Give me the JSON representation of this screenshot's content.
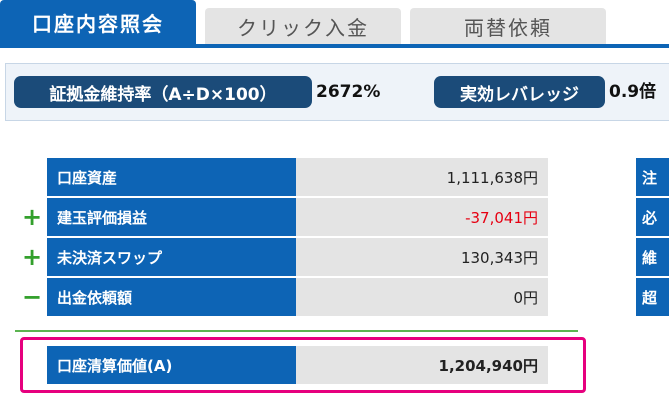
{
  "tabs": [
    {
      "label": "口座内容照会",
      "active": true
    },
    {
      "label": "クリック入金",
      "active": false
    },
    {
      "label": "両替依頼",
      "active": false
    }
  ],
  "metrics": {
    "margin_ratio_label": "証拠金維持率（A÷D×100）",
    "margin_ratio_value": "2672%",
    "leverage_label": "実効レバレッジ",
    "leverage_value": "0.9倍"
  },
  "account_rows": [
    {
      "sign": "",
      "label": "口座資産",
      "value": "1,111,638円"
    },
    {
      "sign": "+",
      "label": "建玉評価損益",
      "value": "-37,041円"
    },
    {
      "sign": "+",
      "label": "未決済スワップ",
      "value": "130,343円"
    },
    {
      "sign": "−",
      "label": "出金依頼額",
      "value": "0円"
    }
  ],
  "liquidation": {
    "label": "口座清算価値(A)",
    "value": "1,204,940円"
  },
  "right_column": [
    "注",
    "必",
    "維",
    "超"
  ],
  "colors": {
    "primary": "#0d64b5",
    "pill": "#1b4b79",
    "negative": "#e60012",
    "positive_sign": "#33a02c",
    "highlight": "#e6007e"
  }
}
